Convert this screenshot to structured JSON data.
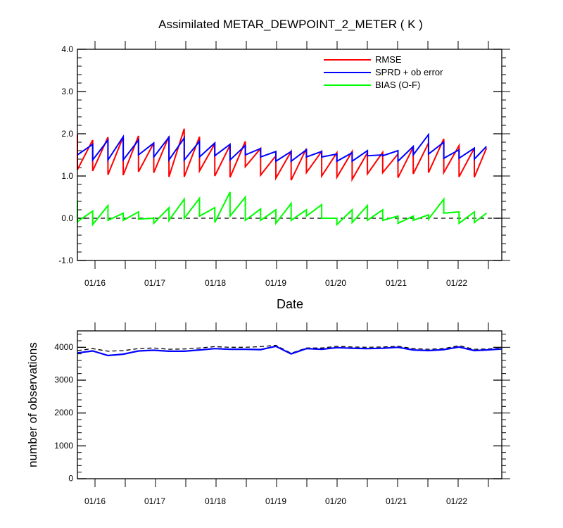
{
  "chart_data": [
    {
      "type": "line",
      "title": "Assimilated METAR_DEWPOINT_2_METER ( K )",
      "xlabel": "Date",
      "ylabel": "",
      "ylim": [
        -1.0,
        4.0
      ],
      "yticks": [
        "-1.0",
        "0.0",
        "1.0",
        "2.0",
        "3.0",
        "4.0"
      ],
      "xticks": [
        "01/16",
        "01/17",
        "01/18",
        "01/19",
        "01/20",
        "01/21",
        "01/22"
      ],
      "xlim": [
        15.8,
        22.75
      ],
      "legend": {
        "position": "top-right",
        "entries": [
          "RMSE",
          "SPRD + ob error",
          "BIAS (O-F)"
        ]
      },
      "colors": {
        "RMSE": "#ff0000",
        "SPRD + ob error": "#0000ff",
        "BIAS (O-F)": "#00ff00"
      },
      "series": [
        {
          "name": "RMSE",
          "points": [
            [
              15.8,
              1.98
            ],
            [
              15.8,
              1.15
            ],
            [
              16.05,
              1.85
            ],
            [
              16.05,
              1.12
            ],
            [
              16.3,
              1.92
            ],
            [
              16.3,
              1.03
            ],
            [
              16.55,
              1.93
            ],
            [
              16.55,
              1.02
            ],
            [
              16.8,
              1.95
            ],
            [
              16.8,
              1.1
            ],
            [
              17.05,
              1.78
            ],
            [
              17.05,
              1.08
            ],
            [
              17.3,
              1.94
            ],
            [
              17.3,
              0.98
            ],
            [
              17.55,
              2.12
            ],
            [
              17.55,
              0.98
            ],
            [
              17.8,
              1.93
            ],
            [
              17.8,
              1.12
            ],
            [
              18.05,
              1.76
            ],
            [
              18.05,
              1.0
            ],
            [
              18.3,
              1.73
            ],
            [
              18.3,
              0.97
            ],
            [
              18.55,
              1.82
            ],
            [
              18.55,
              1.22
            ],
            [
              18.8,
              1.65
            ],
            [
              18.8,
              1.02
            ],
            [
              19.05,
              1.48
            ],
            [
              19.05,
              0.95
            ],
            [
              19.3,
              1.58
            ],
            [
              19.3,
              0.9
            ],
            [
              19.55,
              1.65
            ],
            [
              19.55,
              1.08
            ],
            [
              19.8,
              1.58
            ],
            [
              19.8,
              1.0
            ],
            [
              20.05,
              1.55
            ],
            [
              20.05,
              0.97
            ],
            [
              20.3,
              1.58
            ],
            [
              20.3,
              0.92
            ],
            [
              20.55,
              1.55
            ],
            [
              20.55,
              1.05
            ],
            [
              20.8,
              1.56
            ],
            [
              20.8,
              1.08
            ],
            [
              21.05,
              1.52
            ],
            [
              21.05,
              0.96
            ],
            [
              21.3,
              1.68
            ],
            [
              21.3,
              1.05
            ],
            [
              21.55,
              1.78
            ],
            [
              21.55,
              1.08
            ],
            [
              21.8,
              1.88
            ],
            [
              21.8,
              1.08
            ],
            [
              22.05,
              1.72
            ],
            [
              22.05,
              0.98
            ],
            [
              22.3,
              1.66
            ],
            [
              22.3,
              0.97
            ],
            [
              22.5,
              1.66
            ]
          ]
        },
        {
          "name": "SPRD + ob error",
          "points": [
            [
              15.8,
              1.5
            ],
            [
              16.05,
              1.75
            ],
            [
              16.05,
              1.38
            ],
            [
              16.3,
              1.85
            ],
            [
              16.3,
              1.38
            ],
            [
              16.55,
              1.93
            ],
            [
              16.55,
              1.38
            ],
            [
              16.8,
              1.85
            ],
            [
              16.8,
              1.5
            ],
            [
              17.05,
              1.78
            ],
            [
              17.05,
              1.45
            ],
            [
              17.3,
              1.92
            ],
            [
              17.3,
              1.38
            ],
            [
              17.55,
              1.9
            ],
            [
              17.55,
              1.38
            ],
            [
              17.8,
              1.82
            ],
            [
              17.8,
              1.45
            ],
            [
              18.05,
              1.78
            ],
            [
              18.05,
              1.48
            ],
            [
              18.3,
              1.75
            ],
            [
              18.3,
              1.38
            ],
            [
              18.55,
              1.72
            ],
            [
              18.55,
              1.5
            ],
            [
              18.8,
              1.65
            ],
            [
              18.8,
              1.45
            ],
            [
              19.05,
              1.58
            ],
            [
              19.05,
              1.35
            ],
            [
              19.3,
              1.58
            ],
            [
              19.3,
              1.35
            ],
            [
              19.55,
              1.62
            ],
            [
              19.55,
              1.45
            ],
            [
              19.8,
              1.58
            ],
            [
              19.8,
              1.45
            ],
            [
              20.05,
              1.52
            ],
            [
              20.05,
              1.35
            ],
            [
              20.3,
              1.55
            ],
            [
              20.3,
              1.35
            ],
            [
              20.55,
              1.6
            ],
            [
              20.55,
              1.48
            ],
            [
              20.8,
              1.5
            ],
            [
              20.8,
              1.48
            ],
            [
              21.05,
              1.6
            ],
            [
              21.05,
              1.35
            ],
            [
              21.3,
              1.7
            ],
            [
              21.3,
              1.5
            ],
            [
              21.55,
              1.98
            ],
            [
              21.55,
              1.52
            ],
            [
              21.8,
              1.8
            ],
            [
              21.8,
              1.42
            ],
            [
              22.05,
              1.62
            ],
            [
              22.05,
              1.42
            ],
            [
              22.3,
              1.66
            ],
            [
              22.3,
              1.4
            ],
            [
              22.5,
              1.7
            ]
          ]
        },
        {
          "name": "BIAS (O-F)",
          "points": [
            [
              15.8,
              0.42
            ],
            [
              15.8,
              -0.08
            ],
            [
              16.05,
              0.17
            ],
            [
              16.05,
              -0.15
            ],
            [
              16.3,
              0.3
            ],
            [
              16.3,
              -0.05
            ],
            [
              16.55,
              0.12
            ],
            [
              16.55,
              -0.05
            ],
            [
              16.8,
              0.15
            ],
            [
              16.8,
              -0.02
            ],
            [
              17.05,
              0.0
            ],
            [
              17.05,
              -0.05
            ],
            [
              17.05,
              0.03
            ],
            [
              17.05,
              -0.12
            ],
            [
              17.3,
              0.25
            ],
            [
              17.3,
              -0.05
            ],
            [
              17.55,
              0.45
            ],
            [
              17.55,
              0.0
            ],
            [
              17.8,
              0.47
            ],
            [
              17.8,
              0.05
            ],
            [
              18.05,
              0.25
            ],
            [
              18.05,
              -0.1
            ],
            [
              18.3,
              0.62
            ],
            [
              18.3,
              0.05
            ],
            [
              18.55,
              0.5
            ],
            [
              18.55,
              -0.05
            ],
            [
              18.8,
              0.22
            ],
            [
              18.8,
              -0.05
            ],
            [
              19.05,
              0.2
            ],
            [
              19.05,
              -0.12
            ],
            [
              19.3,
              0.35
            ],
            [
              19.3,
              -0.05
            ],
            [
              19.55,
              0.2
            ],
            [
              19.55,
              0.05
            ],
            [
              19.8,
              0.32
            ],
            [
              19.8,
              0.0
            ],
            [
              20.05,
              0.0
            ],
            [
              20.05,
              -0.15
            ],
            [
              20.3,
              0.2
            ],
            [
              20.3,
              -0.1
            ],
            [
              20.55,
              0.3
            ],
            [
              20.55,
              -0.05
            ],
            [
              20.8,
              0.2
            ],
            [
              20.8,
              -0.05
            ],
            [
              21.05,
              0.05
            ],
            [
              21.05,
              -0.05
            ],
            [
              21.05,
              -0.12
            ],
            [
              21.3,
              0.05
            ],
            [
              21.3,
              -0.05
            ],
            [
              21.55,
              0.08
            ],
            [
              21.55,
              -0.02
            ],
            [
              21.8,
              0.45
            ],
            [
              21.8,
              0.12
            ],
            [
              22.05,
              0.15
            ],
            [
              22.05,
              -0.12
            ],
            [
              22.3,
              0.15
            ],
            [
              22.3,
              -0.1
            ],
            [
              22.5,
              0.12
            ]
          ]
        },
        {
          "name": "zero reference",
          "points": [
            [
              15.8,
              0.0
            ],
            [
              22.75,
              0.0
            ]
          ]
        }
      ]
    },
    {
      "type": "line",
      "title": "",
      "xlabel": "",
      "ylabel": "number of observations",
      "ylim": [
        0,
        4500
      ],
      "yticks": [
        "0",
        "1000",
        "2000",
        "3000",
        "4000"
      ],
      "xticks": [
        "01/16",
        "01/17",
        "01/18",
        "01/19",
        "01/20",
        "01/21",
        "01/22"
      ],
      "xlim": [
        15.8,
        22.75
      ],
      "series": [
        {
          "name": "possible",
          "color": "#000000",
          "x": [
            15.8,
            16.05,
            16.3,
            16.55,
            16.8,
            17.05,
            17.3,
            17.55,
            17.8,
            18.05,
            18.3,
            18.55,
            18.8,
            19.05,
            19.3,
            19.55,
            19.8,
            20.05,
            20.3,
            20.55,
            20.8,
            21.05,
            21.3,
            21.55,
            21.8,
            22.05,
            22.3,
            22.5,
            22.75
          ],
          "values": [
            3900,
            3960,
            3880,
            3900,
            3960,
            3980,
            3940,
            3950,
            3980,
            4020,
            4000,
            4000,
            4020,
            4060,
            3820,
            3980,
            3980,
            4030,
            4010,
            4000,
            4010,
            4030,
            3960,
            3940,
            3960,
            4050,
            3940,
            3950,
            3970
          ]
        },
        {
          "name": "assimilated",
          "color": "#0000ff",
          "x": [
            15.8,
            16.05,
            16.3,
            16.55,
            16.8,
            17.05,
            17.3,
            17.55,
            17.8,
            18.05,
            18.3,
            18.55,
            18.8,
            19.05,
            19.3,
            19.55,
            19.8,
            20.05,
            20.3,
            20.55,
            20.8,
            21.05,
            21.3,
            21.55,
            21.8,
            22.05,
            22.3,
            22.5,
            22.75
          ],
          "values": [
            3830,
            3890,
            3750,
            3790,
            3890,
            3910,
            3880,
            3880,
            3920,
            3960,
            3940,
            3940,
            3930,
            4030,
            3800,
            3960,
            3940,
            3990,
            3970,
            3960,
            3970,
            4000,
            3920,
            3900,
            3930,
            4010,
            3900,
            3920,
            3950
          ]
        }
      ]
    }
  ]
}
